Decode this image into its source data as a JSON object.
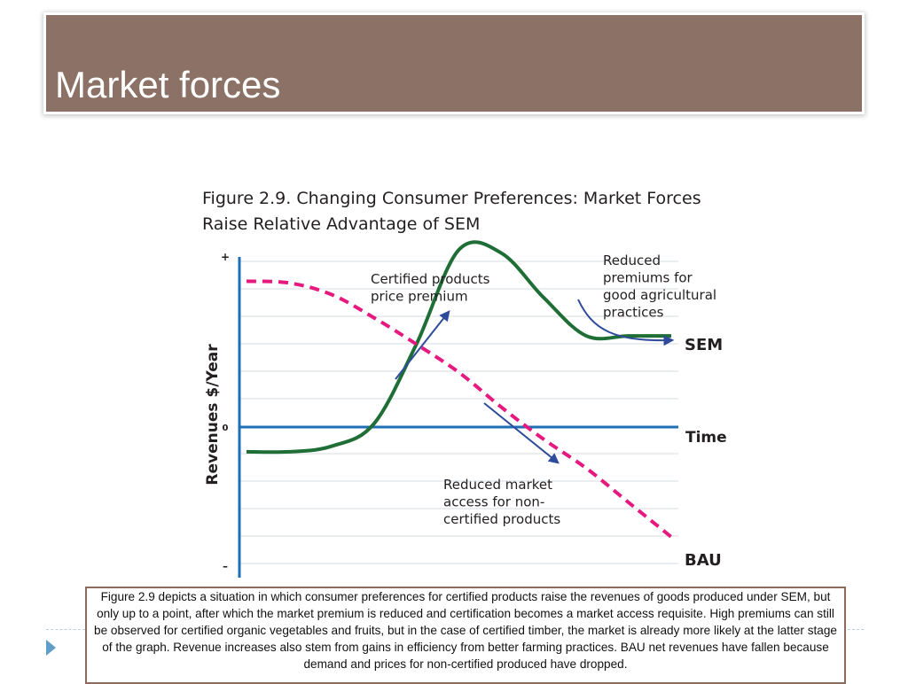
{
  "slide": {
    "title": "Market forces",
    "figure_title_line1": "Figure 2.9. Changing Consumer Preferences: Market Forces",
    "figure_title_line2": "Raise Relative Advantage of SEM",
    "caption": "Figure 2.9 depicts a situation in which consumer preferences for certified products raise the revenues of goods produced under SEM, but only up to a point, after which the market premium is reduced and certification becomes a market access requisite. High premiums can still be observed for certified organic vegetables and fruits, but in the case of certified timber, the market is already more likely at the latter stage of the graph. Revenue increases also stem from gains in efficiency from better farming practices. BAU net revenues have fallen because demand and prices for non-certified produced have dropped."
  },
  "chart_data": {
    "type": "line",
    "title": "Figure 2.9. Changing Consumer Preferences: Market Forces Raise Relative Advantage of SEM",
    "xlabel": "Time",
    "ylabel": "Revenues $/Year",
    "y_ticks": [
      "+",
      "0",
      "–"
    ],
    "ylim": [
      -1,
      1
    ],
    "xlim": [
      0,
      10
    ],
    "grid": true,
    "series": [
      {
        "name": "SEM",
        "color": "#1e6e36",
        "style": "solid",
        "x": [
          0,
          1,
          2,
          3,
          4,
          5,
          6,
          7,
          8,
          9,
          10
        ],
        "y": [
          -0.18,
          -0.18,
          -0.14,
          0.02,
          0.5,
          1.07,
          1.05,
          0.78,
          0.55,
          0.55,
          0.55
        ]
      },
      {
        "name": "BAU",
        "color": "#e6197f",
        "style": "dashed",
        "x": [
          0,
          1,
          2,
          3,
          4,
          5,
          6,
          7,
          8,
          9,
          10
        ],
        "y": [
          0.88,
          0.87,
          0.8,
          0.66,
          0.5,
          0.33,
          0.12,
          -0.09,
          -0.3,
          -0.55,
          -0.8
        ]
      }
    ],
    "annotations": [
      {
        "id": "premium",
        "lines": [
          "Certified products",
          "price premium"
        ]
      },
      {
        "id": "reduced-premiums",
        "lines": [
          "Reduced",
          "premiums for",
          "good agricultural",
          "practices"
        ]
      },
      {
        "id": "market-access",
        "lines": [
          "Reduced market",
          "access for non-",
          "certified products"
        ]
      }
    ],
    "arrow_color": "#2e4b9b",
    "axis_color": "#1f6fb5"
  },
  "colors": {
    "title_bar": "#8c7266",
    "caption_border": "#8c6a5c",
    "footer_accent": "#5f9ec9"
  }
}
